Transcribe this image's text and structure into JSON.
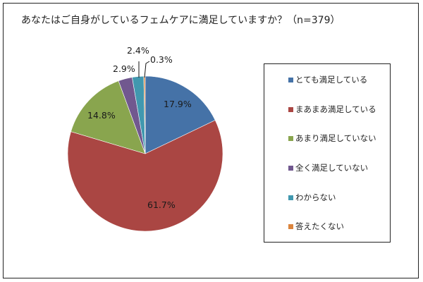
{
  "chart_data": {
    "type": "pie",
    "title": "あなたはご自身がしているフェムケアに満足していますか？（n=379）",
    "categories": [
      "とても満足している",
      "まあまあ満足している",
      "あまり満足していない",
      "全く満足していない",
      "わからない",
      "答えたくない"
    ],
    "values": [
      17.9,
      61.7,
      14.8,
      2.9,
      2.4,
      0.3
    ],
    "data_labels": [
      "17.9%",
      "61.7%",
      "14.8%",
      "2.9%",
      "2.4%",
      "0.3%"
    ],
    "colors": [
      "#4572A7",
      "#AA4643",
      "#89A54E",
      "#71588F",
      "#4198AF",
      "#DB843D"
    ],
    "legend_position": "right"
  },
  "title": "あなたはご自身がしているフェムケアに満足していますか？（n=379）",
  "legend": {
    "items": [
      {
        "label": "とても満足している",
        "color": "#4572A7"
      },
      {
        "label": "まあまあ満足している",
        "color": "#AA4643"
      },
      {
        "label": "あまり満足していない",
        "color": "#89A54E"
      },
      {
        "label": "全く満足していない",
        "color": "#71588F"
      },
      {
        "label": "わからない",
        "color": "#4198AF"
      },
      {
        "label": "答えたくない",
        "color": "#DB843D"
      }
    ]
  },
  "labels": {
    "l0": "17.9%",
    "l1": "61.7%",
    "l2": "14.8%",
    "l3": "2.9%",
    "l4": "2.4%",
    "l5": "0.3%"
  }
}
